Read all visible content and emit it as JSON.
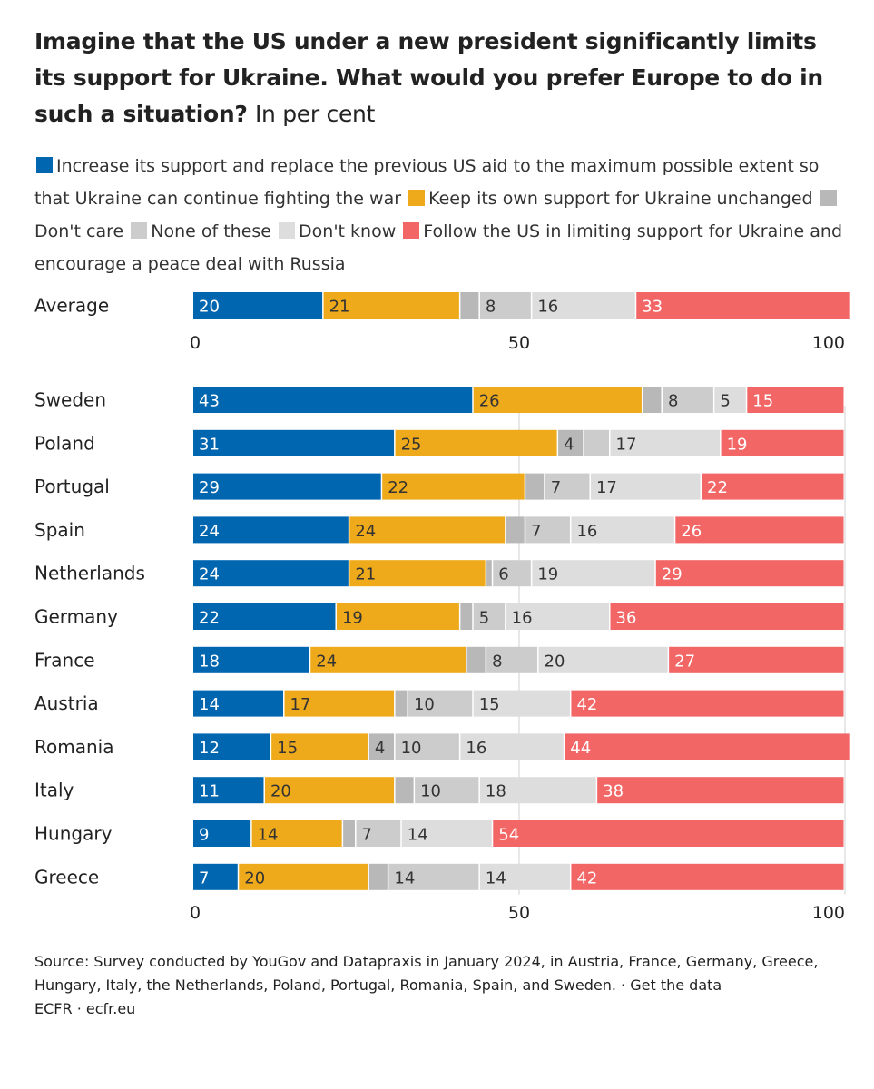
{
  "title": "Imagine that the US under a new president significantly limits its support for Ukraine. What would you prefer Europe to do in such a situation?",
  "subtitle": "In per cent",
  "source": "Source: Survey conducted by YouGov and Datapraxis in January 2024, in Austria, France, Germany, Greece, Hungary, Italy, the Netherlands, Poland, Portugal, Romania, Spain, and Sweden. · Get the data",
  "credit": "ECFR · ecfr.eu",
  "chart_data": {
    "type": "bar",
    "orientation": "horizontal",
    "stacked": true,
    "title": "Imagine that the US under a new president significantly limits its support for Ukraine. What would you prefer Europe to do in such a situation?",
    "subtitle": "In per cent",
    "xlim": [
      0,
      100
    ],
    "xticks": [
      0,
      50,
      100
    ],
    "grid": true,
    "legend_position": "top",
    "series": [
      {
        "name": "Increase its support and replace the previous US aid to the maximum possible extent so that Ukraine can continue fighting the war",
        "color": "#0066b0",
        "label_color": "#ffffff"
      },
      {
        "name": "Keep its own support for Ukraine unchanged",
        "color": "#eeaa1a",
        "label_color": "#333333"
      },
      {
        "name": "Don't care",
        "color": "#b8b8b8",
        "label_color": "#333333"
      },
      {
        "name": "None of these",
        "color": "#cccccc",
        "label_color": "#333333"
      },
      {
        "name": "Don't know",
        "color": "#dddddd",
        "label_color": "#333333"
      },
      {
        "name": "Follow the US in limiting support for Ukraine and encourage a peace deal with Russia",
        "color": "#f26666",
        "label_color": "#ffffff"
      }
    ],
    "average": {
      "category": "Average",
      "values": [
        20,
        21,
        3,
        8,
        16,
        33
      ]
    },
    "categories": [
      "Sweden",
      "Poland",
      "Portugal",
      "Spain",
      "Netherlands",
      "Germany",
      "France",
      "Austria",
      "Romania",
      "Italy",
      "Hungary",
      "Greece"
    ],
    "values": [
      [
        43,
        26,
        3,
        8,
        5,
        15
      ],
      [
        31,
        25,
        4,
        4,
        17,
        19
      ],
      [
        29,
        22,
        3,
        7,
        17,
        22
      ],
      [
        24,
        24,
        3,
        7,
        16,
        26
      ],
      [
        24,
        21,
        1,
        6,
        19,
        29
      ],
      [
        22,
        19,
        2,
        5,
        16,
        36
      ],
      [
        18,
        24,
        3,
        8,
        20,
        27
      ],
      [
        14,
        17,
        2,
        10,
        15,
        42
      ],
      [
        12,
        15,
        4,
        10,
        16,
        44
      ],
      [
        11,
        20,
        3,
        10,
        18,
        38
      ],
      [
        9,
        14,
        2,
        7,
        14,
        54
      ],
      [
        7,
        20,
        3,
        14,
        14,
        42
      ]
    ],
    "labeled_segments": [
      [
        true,
        true,
        false,
        true,
        true,
        true
      ],
      [
        true,
        true,
        false,
        true,
        true,
        true
      ],
      [
        true,
        true,
        true,
        false,
        true,
        true
      ],
      [
        true,
        true,
        false,
        true,
        true,
        true
      ],
      [
        true,
        true,
        false,
        true,
        true,
        true
      ],
      [
        true,
        true,
        false,
        true,
        true,
        true
      ],
      [
        true,
        true,
        false,
        true,
        true,
        true
      ],
      [
        true,
        true,
        false,
        true,
        true,
        true
      ],
      [
        true,
        true,
        false,
        true,
        true,
        true
      ],
      [
        true,
        true,
        true,
        true,
        true,
        true
      ],
      [
        true,
        true,
        false,
        true,
        true,
        true
      ],
      [
        true,
        true,
        false,
        true,
        true,
        true
      ],
      [
        true,
        true,
        false,
        true,
        true,
        true
      ]
    ]
  }
}
